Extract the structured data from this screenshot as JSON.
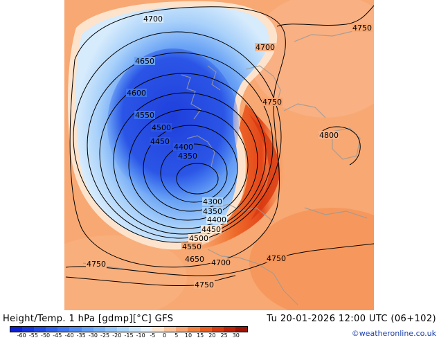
{
  "map": {
    "contour_labels": [
      "4700",
      "4750",
      "4700",
      "4650",
      "4600",
      "4550",
      "4500",
      "4450",
      "4400",
      "4350",
      "4750",
      "4800",
      "4300",
      "4350",
      "4400",
      "4450",
      "4500",
      "4550",
      "4650",
      "4700",
      "4750",
      "4750",
      "4750"
    ]
  },
  "footer": {
    "title": "Height/Temp. 1 hPa [gdmp][°C] GFS",
    "valid_time": "Tu 20-01-2026 12:00 UTC (06+102)",
    "credit": "©weatheronline.co.uk"
  },
  "legend": {
    "ticks": [
      "-60",
      "-55",
      "-50",
      "-45",
      "-40",
      "-35",
      "-30",
      "-25",
      "-20",
      "-15",
      "-10",
      "-5",
      "0",
      "5",
      "10",
      "15",
      "20",
      "25",
      "30"
    ],
    "colors": [
      "#0b1fd6",
      "#1434e0",
      "#1f4ae8",
      "#2d60ee",
      "#3d76f2",
      "#4f8bf5",
      "#63a0f7",
      "#79b3f8",
      "#91c5fa",
      "#abd6fb",
      "#c7e5fc",
      "#e6f3fd",
      "#fde4cc",
      "#fcc49a",
      "#f9a46e",
      "#f4823f",
      "#ea5c1c",
      "#d9390e",
      "#bf2108",
      "#9e1205"
    ]
  }
}
